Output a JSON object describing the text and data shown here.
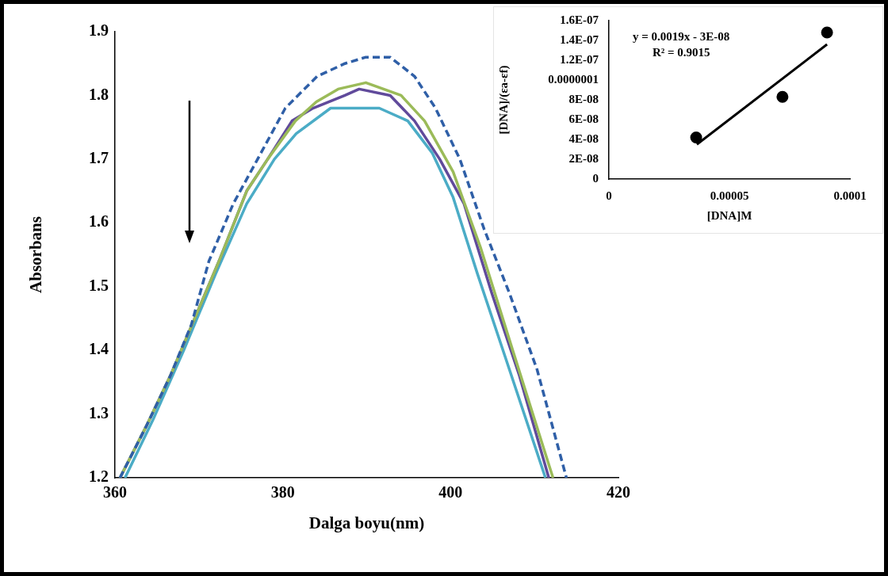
{
  "chart_data": [
    {
      "type": "line",
      "xlabel": "Dalga boyu(nm)",
      "ylabel": "Absorbans",
      "xlim": [
        360,
        420
      ],
      "ylim": [
        1.2,
        1.9
      ],
      "xticks": [
        360,
        380,
        400,
        420
      ],
      "yticks": [
        1.2,
        1.3,
        1.4,
        1.5,
        1.6,
        1.7,
        1.8,
        1.9
      ],
      "marker": "none",
      "series": [
        {
          "color": "#2f5fa7",
          "line_style": "dashed",
          "x": [
            360.6,
            363.7,
            366.6,
            369.1,
            371.2,
            374.1,
            377.0,
            380.3,
            384.1,
            387.4,
            389.9,
            392.8,
            395.7,
            398.2,
            401.1,
            404.0,
            407.0,
            410.3,
            413.8
          ],
          "values": [
            1.2,
            1.28,
            1.36,
            1.44,
            1.54,
            1.63,
            1.7,
            1.78,
            1.83,
            1.85,
            1.86,
            1.86,
            1.83,
            1.78,
            1.7,
            1.59,
            1.49,
            1.37,
            1.2
          ]
        },
        {
          "color": "#9bbb59",
          "line_style": "solid",
          "x": [
            360.6,
            363.7,
            366.6,
            369.5,
            372.4,
            375.7,
            378.2,
            381.5,
            384.0,
            386.6,
            389.9,
            392.0,
            394.1,
            396.9,
            400.3,
            403.6,
            407.4,
            412.2
          ],
          "values": [
            1.2,
            1.28,
            1.36,
            1.45,
            1.54,
            1.65,
            1.7,
            1.76,
            1.79,
            1.81,
            1.82,
            1.81,
            1.8,
            1.76,
            1.68,
            1.56,
            1.4,
            1.2
          ]
        },
        {
          "color": "#604a9b",
          "line_style": "solid",
          "x": [
            360.6,
            363.7,
            366.6,
            369.5,
            372.4,
            375.7,
            378.2,
            381.1,
            383.6,
            387.4,
            389.1,
            392.8,
            395.7,
            398.7,
            401.6,
            404.9,
            408.2,
            411.7
          ],
          "values": [
            1.2,
            1.28,
            1.36,
            1.45,
            1.54,
            1.65,
            1.7,
            1.76,
            1.78,
            1.8,
            1.81,
            1.8,
            1.76,
            1.7,
            1.63,
            1.49,
            1.36,
            1.2
          ]
        },
        {
          "color": "#4bacc6",
          "line_style": "solid",
          "x": [
            361.2,
            364.5,
            368.2,
            372.0,
            375.7,
            379.0,
            381.6,
            385.7,
            389.1,
            390.3,
            391.5,
            394.9,
            397.8,
            400.3,
            403.2,
            406.5,
            411.3
          ],
          "values": [
            1.2,
            1.29,
            1.4,
            1.52,
            1.63,
            1.7,
            1.74,
            1.78,
            1.78,
            1.78,
            1.78,
            1.76,
            1.71,
            1.64,
            1.52,
            1.39,
            1.2
          ]
        }
      ]
    },
    {
      "type": "scatter",
      "xlabel": "[DNA]M",
      "ylabel": "[DNA]/(εa-εf)",
      "xlim": [
        0,
        0.0001
      ],
      "ylim": [
        0,
        1.6e-07
      ],
      "xticks": [
        0,
        {
          "value": 5e-05,
          "label": "0.00005"
        },
        {
          "value": 0.0001,
          "label": "0.0001"
        }
      ],
      "yticks": [
        0,
        {
          "value": 2e-08,
          "label": "2E-08"
        },
        {
          "value": 4e-08,
          "label": "4E-08"
        },
        {
          "value": 6e-08,
          "label": "6E-08"
        },
        {
          "value": 8e-08,
          "label": "8E-08"
        },
        {
          "value": 1e-07,
          "label": "0.0000001"
        },
        {
          "value": 1.2e-07,
          "label": "1.2E-07"
        },
        {
          "value": 1.4e-07,
          "label": "1.4E-07"
        },
        {
          "value": 1.6e-07,
          "label": "1.6E-07"
        }
      ],
      "annotations": [
        "y = 0.0019x - 3E-08",
        "R² = 0.9015"
      ],
      "series": [
        {
          "type": "scatter",
          "marker": "circle",
          "color": "#000000",
          "x": [
            3.62e-05,
            7.2e-05,
            9.05e-05
          ],
          "values": [
            4.2e-08,
            8.3e-08,
            1.48e-07
          ]
        },
        {
          "type": "line",
          "marker": "none",
          "color": "#000000",
          "x": [
            3.65e-05,
            9.05e-05
          ],
          "values": [
            3.5e-08,
            1.36e-07
          ]
        }
      ]
    }
  ]
}
